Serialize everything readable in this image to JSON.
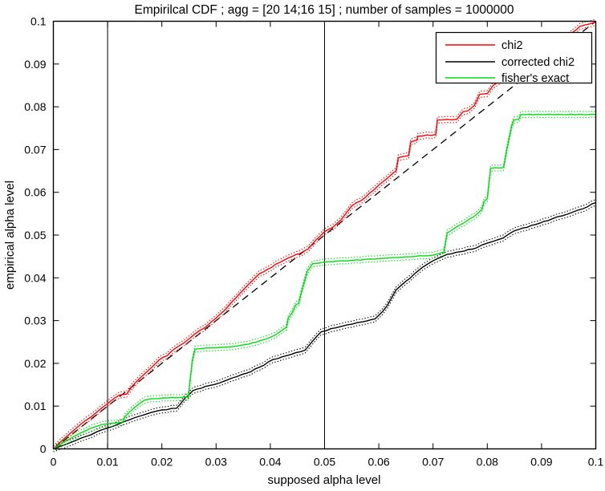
{
  "figure": {
    "title": "Empirilcal CDF ; agg = [20 14;16 15] ; number of samples = 1000000",
    "xlabel": "supposed alpha level",
    "ylabel": "empirical alpha level"
  },
  "legend": {
    "items": [
      {
        "label": "chi2",
        "color": "#ff0000"
      },
      {
        "label": "corrected chi2",
        "color": "#000000"
      },
      {
        "label": "fisher's exact",
        "color": "#00dd11"
      }
    ]
  },
  "chart_data": {
    "type": "line",
    "title": "Empirilcal CDF ; agg = [20 14;16 15] ; number of samples = 1000000",
    "xlabel": "supposed alpha level",
    "ylabel": "empirical alpha level",
    "xlim": [
      0,
      0.1
    ],
    "ylim": [
      0,
      0.1
    ],
    "grid": false,
    "legend_position": "northeast",
    "x_ticks": [
      0,
      0.01,
      0.02,
      0.03,
      0.04,
      0.05,
      0.06,
      0.07,
      0.08,
      0.09,
      0.1
    ],
    "x_tick_labels": [
      "0",
      "0.01",
      "0.02",
      "0.03",
      "0.04",
      "0.05",
      "0.06",
      "0.07",
      "0.08",
      "0.09",
      "0.1"
    ],
    "y_ticks": [
      0,
      0.01,
      0.02,
      0.03,
      0.04,
      0.05,
      0.06,
      0.07,
      0.08,
      0.09,
      0.1
    ],
    "y_tick_labels": [
      "0",
      "0.01",
      "0.02",
      "0.03",
      "0.04",
      "0.05",
      "0.06",
      "0.07",
      "0.08",
      "0.09",
      "0.1"
    ],
    "reference_lines": {
      "diagonal": {
        "from": [
          0,
          0
        ],
        "to": [
          0.1,
          0.1
        ],
        "style": "dashed",
        "color": "#000000"
      },
      "vertical_x": [
        0.01,
        0.05
      ]
    },
    "series": [
      {
        "name": "chi2",
        "color": "#ff0000",
        "band": 0.0007,
        "points": [
          [
            0,
            0
          ],
          [
            0.002,
            0.0024
          ],
          [
            0.004,
            0.0046
          ],
          [
            0.006,
            0.0067
          ],
          [
            0.008,
            0.0086
          ],
          [
            0.01,
            0.0106
          ],
          [
            0.0112,
            0.0118
          ],
          [
            0.0122,
            0.0126
          ],
          [
            0.0135,
            0.0128
          ],
          [
            0.0145,
            0.0146
          ],
          [
            0.016,
            0.0166
          ],
          [
            0.018,
            0.0189
          ],
          [
            0.0195,
            0.0208
          ],
          [
            0.021,
            0.0218
          ],
          [
            0.0225,
            0.0235
          ],
          [
            0.024,
            0.0247
          ],
          [
            0.026,
            0.0268
          ],
          [
            0.028,
            0.0284
          ],
          [
            0.03,
            0.0306
          ],
          [
            0.0315,
            0.0323
          ],
          [
            0.033,
            0.0345
          ],
          [
            0.0345,
            0.0365
          ],
          [
            0.036,
            0.0385
          ],
          [
            0.0372,
            0.04
          ],
          [
            0.038,
            0.041
          ],
          [
            0.0395,
            0.042
          ],
          [
            0.041,
            0.0432
          ],
          [
            0.0425,
            0.0441
          ],
          [
            0.044,
            0.045
          ],
          [
            0.0455,
            0.0457
          ],
          [
            0.047,
            0.0468
          ],
          [
            0.0483,
            0.0487
          ],
          [
            0.05,
            0.0508
          ],
          [
            0.0515,
            0.0518
          ],
          [
            0.053,
            0.0535
          ],
          [
            0.055,
            0.0568
          ],
          [
            0.0575,
            0.0588
          ],
          [
            0.06,
            0.0617
          ],
          [
            0.0615,
            0.0632
          ],
          [
            0.0627,
            0.0646
          ],
          [
            0.0632,
            0.065
          ],
          [
            0.0636,
            0.0681
          ],
          [
            0.0655,
            0.0686
          ],
          [
            0.0659,
            0.0718
          ],
          [
            0.067,
            0.0722
          ],
          [
            0.0672,
            0.0731
          ],
          [
            0.0705,
            0.0735
          ],
          [
            0.0708,
            0.0769
          ],
          [
            0.0744,
            0.0771
          ],
          [
            0.0755,
            0.0788
          ],
          [
            0.0765,
            0.0791
          ],
          [
            0.0776,
            0.0803
          ],
          [
            0.0786,
            0.0829
          ],
          [
            0.08,
            0.0831
          ],
          [
            0.0811,
            0.085
          ],
          [
            0.083,
            0.0868
          ],
          [
            0.086,
            0.089
          ],
          [
            0.09,
            0.0922
          ],
          [
            0.094,
            0.0955
          ],
          [
            0.0971,
            0.0988
          ],
          [
            0.1,
            0.0998
          ]
        ]
      },
      {
        "name": "corrected chi2",
        "color": "#000000",
        "band": 0.0007,
        "points": [
          [
            0,
            0
          ],
          [
            0.002,
            0.0009
          ],
          [
            0.004,
            0.0019
          ],
          [
            0.006,
            0.0029
          ],
          [
            0.008,
            0.004
          ],
          [
            0.01,
            0.0049
          ],
          [
            0.012,
            0.0058
          ],
          [
            0.014,
            0.0068
          ],
          [
            0.016,
            0.0077
          ],
          [
            0.018,
            0.0085
          ],
          [
            0.02,
            0.0091
          ],
          [
            0.0227,
            0.0095
          ],
          [
            0.0242,
            0.0118
          ],
          [
            0.0257,
            0.0136
          ],
          [
            0.028,
            0.0146
          ],
          [
            0.0306,
            0.0154
          ],
          [
            0.033,
            0.0166
          ],
          [
            0.0356,
            0.0177
          ],
          [
            0.038,
            0.0191
          ],
          [
            0.0405,
            0.0209
          ],
          [
            0.043,
            0.0218
          ],
          [
            0.0464,
            0.0231
          ],
          [
            0.0478,
            0.0252
          ],
          [
            0.0494,
            0.0274
          ],
          [
            0.052,
            0.0283
          ],
          [
            0.0542,
            0.029
          ],
          [
            0.057,
            0.0297
          ],
          [
            0.0593,
            0.0304
          ],
          [
            0.0607,
            0.0321
          ],
          [
            0.0616,
            0.0336
          ],
          [
            0.0632,
            0.0372
          ],
          [
            0.065,
            0.0392
          ],
          [
            0.0681,
            0.0425
          ],
          [
            0.07,
            0.044
          ],
          [
            0.0726,
            0.0455
          ],
          [
            0.075,
            0.0461
          ],
          [
            0.078,
            0.047
          ],
          [
            0.08,
            0.0481
          ],
          [
            0.0829,
            0.0493
          ],
          [
            0.085,
            0.051
          ],
          [
            0.0897,
            0.0528
          ],
          [
            0.092,
            0.0538
          ],
          [
            0.0948,
            0.0549
          ],
          [
            0.0977,
            0.0562
          ],
          [
            0.1,
            0.0576
          ]
        ]
      },
      {
        "name": "fisher's exact",
        "color": "#00dd11",
        "band": 0.0007,
        "points": [
          [
            0,
            0
          ],
          [
            0.001,
            0.0009
          ],
          [
            0.003,
            0.0023
          ],
          [
            0.005,
            0.0037
          ],
          [
            0.007,
            0.0049
          ],
          [
            0.009,
            0.0057
          ],
          [
            0.011,
            0.006
          ],
          [
            0.0128,
            0.0063
          ],
          [
            0.0132,
            0.0075
          ],
          [
            0.014,
            0.0086
          ],
          [
            0.015,
            0.0097
          ],
          [
            0.016,
            0.0107
          ],
          [
            0.0168,
            0.0114
          ],
          [
            0.018,
            0.0117
          ],
          [
            0.021,
            0.0119
          ],
          [
            0.0249,
            0.0121
          ],
          [
            0.0252,
            0.016
          ],
          [
            0.0256,
            0.0205
          ],
          [
            0.0261,
            0.0233
          ],
          [
            0.029,
            0.0236
          ],
          [
            0.033,
            0.0239
          ],
          [
            0.036,
            0.0245
          ],
          [
            0.039,
            0.0256
          ],
          [
            0.0409,
            0.0266
          ],
          [
            0.042,
            0.0276
          ],
          [
            0.043,
            0.0285
          ],
          [
            0.0433,
            0.0306
          ],
          [
            0.044,
            0.0318
          ],
          [
            0.0447,
            0.0337
          ],
          [
            0.0452,
            0.034
          ],
          [
            0.0458,
            0.037
          ],
          [
            0.0468,
            0.0415
          ],
          [
            0.0478,
            0.0433
          ],
          [
            0.05,
            0.0437
          ],
          [
            0.055,
            0.0441
          ],
          [
            0.06,
            0.0445
          ],
          [
            0.065,
            0.0449
          ],
          [
            0.07,
            0.0453
          ],
          [
            0.072,
            0.046
          ],
          [
            0.0726,
            0.0505
          ],
          [
            0.075,
            0.0524
          ],
          [
            0.0775,
            0.0543
          ],
          [
            0.079,
            0.056
          ],
          [
            0.0794,
            0.0578
          ],
          [
            0.08,
            0.0585
          ],
          [
            0.0806,
            0.0656
          ],
          [
            0.083,
            0.0658
          ],
          [
            0.0836,
            0.07
          ],
          [
            0.0845,
            0.0755
          ],
          [
            0.0849,
            0.0769
          ],
          [
            0.0858,
            0.0771
          ],
          [
            0.0862,
            0.0782
          ],
          [
            0.09,
            0.0782
          ],
          [
            0.1,
            0.0782
          ]
        ]
      }
    ]
  }
}
